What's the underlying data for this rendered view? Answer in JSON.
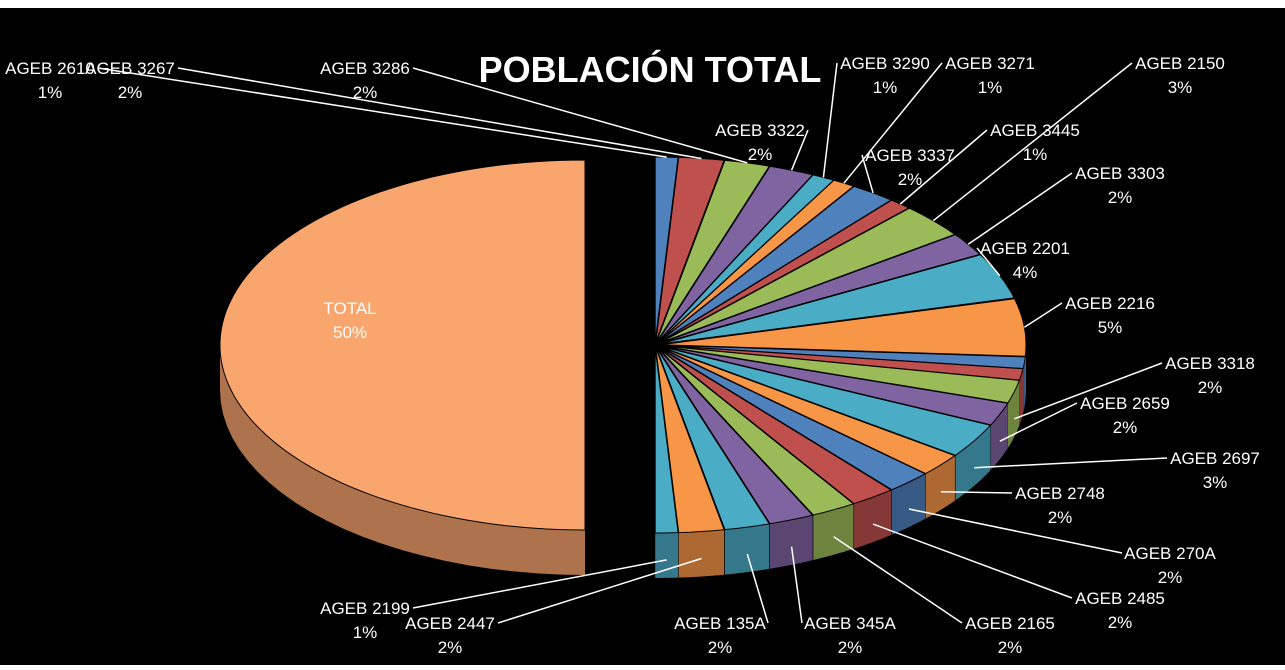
{
  "chart_data": {
    "type": "pie3d",
    "title": "POBLACIÓN TOTAL",
    "categories": [
      "AGEB 2610",
      "AGEB 3267",
      "AGEB 3286",
      "AGEB 3322",
      "AGEB 3290",
      "AGEB 3271",
      "AGEB 3337",
      "AGEB 3445",
      "AGEB 2150",
      "AGEB 3303",
      "AGEB 2201",
      "AGEB 2216",
      null,
      null,
      "AGEB 3318",
      "AGEB 2659",
      "AGEB 2697",
      "AGEB 2748",
      "AGEB 270A",
      "AGEB 2485",
      "AGEB 2165",
      "AGEB 345A",
      "AGEB 135A",
      "AGEB 2447",
      "AGEB 2199",
      "TOTAL"
    ],
    "values": [
      1,
      2,
      2,
      2,
      1,
      1,
      2,
      1,
      3,
      2,
      4,
      5,
      1,
      1,
      2,
      2,
      3,
      2,
      2,
      2,
      2,
      2,
      2,
      2,
      1,
      50
    ],
    "value_labels": [
      "1%",
      "2%",
      "2%",
      "2%",
      "1%",
      "1%",
      "2%",
      "1%",
      "3%",
      "2%",
      "4%",
      "5%",
      null,
      null,
      "2%",
      "2%",
      "3%",
      "2%",
      "2%",
      "2%",
      "2%",
      "2%",
      "2%",
      "2%",
      "1%",
      "50%"
    ],
    "colors": [
      "#4f81bd",
      "#c0504d",
      "#9bbb59",
      "#8064a2",
      "#4bacc6",
      "#f79646",
      "#4f81bd",
      "#c0504d",
      "#9bbb59",
      "#8064a2",
      "#4bacc6",
      "#f79646",
      "#4f81bd",
      "#c0504d",
      "#9bbb59",
      "#8064a2",
      "#4bacc6",
      "#f79646",
      "#4f81bd",
      "#c0504d",
      "#9bbb59",
      "#8064a2",
      "#4bacc6",
      "#f79646",
      "#4bacc6",
      "#f9a56e"
    ]
  }
}
